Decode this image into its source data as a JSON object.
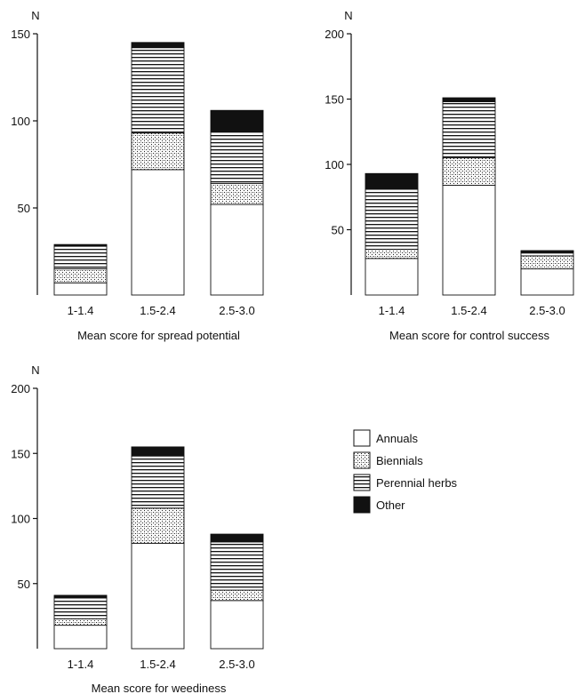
{
  "chart_data": [
    {
      "type": "bar",
      "stacked": true,
      "ylabel": "N",
      "xlabel": "Mean score for spread potential",
      "ylim": [
        0,
        150
      ],
      "yticks": [
        50,
        100,
        150
      ],
      "categories": [
        "1-1.4",
        "1.5-2.4",
        "2.5-3.0"
      ],
      "series": [
        {
          "name": "Annuals",
          "values": [
            7,
            72,
            52
          ]
        },
        {
          "name": "Biennials",
          "values": [
            8,
            21,
            12
          ]
        },
        {
          "name": "Perennial herbs",
          "values": [
            13,
            49,
            30
          ]
        },
        {
          "name": "Other",
          "values": [
            1,
            3,
            12
          ]
        }
      ]
    },
    {
      "type": "bar",
      "stacked": true,
      "ylabel": "N",
      "xlabel": "Mean score for control success",
      "ylim": [
        0,
        200
      ],
      "yticks": [
        50,
        100,
        150,
        200
      ],
      "categories": [
        "1-1.4",
        "1.5-2.4",
        "2.5-3.0"
      ],
      "series": [
        {
          "name": "Annuals",
          "values": [
            28,
            84,
            20
          ]
        },
        {
          "name": "Biennials",
          "values": [
            7,
            21,
            10
          ]
        },
        {
          "name": "Perennial herbs",
          "values": [
            46,
            43,
            3
          ]
        },
        {
          "name": "Other",
          "values": [
            12,
            3,
            1
          ]
        }
      ]
    },
    {
      "type": "bar",
      "stacked": true,
      "ylabel": "N",
      "xlabel": "Mean score for weediness",
      "ylim": [
        0,
        200
      ],
      "yticks": [
        50,
        100,
        150,
        200
      ],
      "categories": [
        "1-1.4",
        "1.5-2.4",
        "2.5-3.0"
      ],
      "series": [
        {
          "name": "Annuals",
          "values": [
            18,
            81,
            37
          ]
        },
        {
          "name": "Biennials",
          "values": [
            5,
            27,
            8
          ]
        },
        {
          "name": "Perennial herbs",
          "values": [
            16,
            40,
            37
          ]
        },
        {
          "name": "Other",
          "values": [
            2,
            7,
            6
          ]
        }
      ]
    }
  ],
  "legend": {
    "items": [
      {
        "label": "Annuals",
        "pattern": "annuals"
      },
      {
        "label": "Biennials",
        "pattern": "biennials"
      },
      {
        "label": "Perennial herbs",
        "pattern": "perennial"
      },
      {
        "label": "Other",
        "pattern": "other"
      }
    ]
  }
}
